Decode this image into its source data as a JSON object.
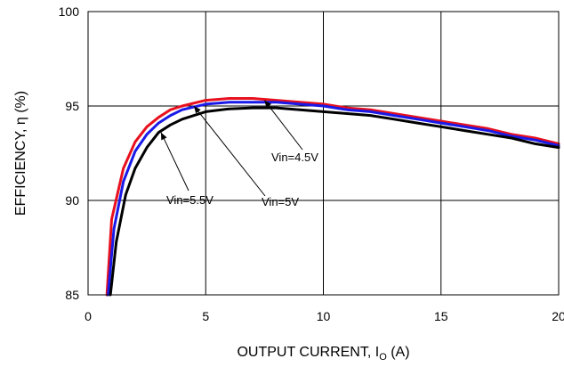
{
  "chart_data": {
    "type": "line",
    "xlabel": "OUTPUT CURRENT, I",
    "xlabel_sub": "O",
    "xlabel_unit": " (A)",
    "ylabel": "EFFICIENCY, η  (%)",
    "xlim": [
      0,
      20
    ],
    "ylim": [
      85,
      100
    ],
    "x_ticks": [
      "0",
      "5",
      "10",
      "15",
      "20"
    ],
    "y_ticks": [
      "85",
      "90",
      "95",
      "100"
    ],
    "grid": true,
    "series": [
      {
        "name": "Vin=4.5V",
        "color": "#e8101e",
        "points": [
          [
            0.8,
            85
          ],
          [
            1.0,
            89
          ],
          [
            1.5,
            91.7
          ],
          [
            2.0,
            93.1
          ],
          [
            2.5,
            93.9
          ],
          [
            3.0,
            94.4
          ],
          [
            3.5,
            94.8
          ],
          [
            4.0,
            95.0
          ],
          [
            5.0,
            95.3
          ],
          [
            6.0,
            95.4
          ],
          [
            7.0,
            95.4
          ],
          [
            8.0,
            95.3
          ],
          [
            9.0,
            95.2
          ],
          [
            10.0,
            95.1
          ],
          [
            11.0,
            94.9
          ],
          [
            12.0,
            94.8
          ],
          [
            13.0,
            94.6
          ],
          [
            14.0,
            94.4
          ],
          [
            15.0,
            94.2
          ],
          [
            16.0,
            94.0
          ],
          [
            17.0,
            93.8
          ],
          [
            18.0,
            93.5
          ],
          [
            19.0,
            93.3
          ],
          [
            20.0,
            93.0
          ]
        ]
      },
      {
        "name": "Vin=5V",
        "color": "#1a1ae8",
        "points": [
          [
            0.85,
            85
          ],
          [
            1.1,
            88.5
          ],
          [
            1.5,
            91.0
          ],
          [
            2.0,
            92.6
          ],
          [
            2.5,
            93.5
          ],
          [
            3.0,
            94.1
          ],
          [
            3.5,
            94.5
          ],
          [
            4.0,
            94.8
          ],
          [
            5.0,
            95.1
          ],
          [
            6.0,
            95.2
          ],
          [
            7.0,
            95.2
          ],
          [
            8.0,
            95.2
          ],
          [
            9.0,
            95.1
          ],
          [
            10.0,
            95.0
          ],
          [
            11.0,
            94.8
          ],
          [
            12.0,
            94.7
          ],
          [
            13.0,
            94.5
          ],
          [
            14.0,
            94.3
          ],
          [
            15.0,
            94.1
          ],
          [
            16.0,
            93.9
          ],
          [
            17.0,
            93.7
          ],
          [
            18.0,
            93.4
          ],
          [
            19.0,
            93.2
          ],
          [
            20.0,
            92.9
          ]
        ]
      },
      {
        "name": "Vin=5.5V",
        "color": "#000000",
        "points": [
          [
            0.95,
            85
          ],
          [
            1.2,
            87.8
          ],
          [
            1.6,
            90.3
          ],
          [
            2.0,
            91.7
          ],
          [
            2.5,
            92.8
          ],
          [
            3.0,
            93.6
          ],
          [
            3.5,
            94.0
          ],
          [
            4.0,
            94.3
          ],
          [
            5.0,
            94.7
          ],
          [
            6.0,
            94.85
          ],
          [
            7.0,
            94.9
          ],
          [
            8.0,
            94.9
          ],
          [
            9.0,
            94.8
          ],
          [
            10.0,
            94.7
          ],
          [
            11.0,
            94.6
          ],
          [
            12.0,
            94.5
          ],
          [
            13.0,
            94.3
          ],
          [
            14.0,
            94.1
          ],
          [
            15.0,
            93.9
          ],
          [
            16.0,
            93.7
          ],
          [
            17.0,
            93.5
          ],
          [
            18.0,
            93.3
          ],
          [
            19.0,
            93.0
          ],
          [
            20.0,
            92.8
          ]
        ]
      }
    ],
    "annotations": [
      {
        "label": "Vin=4.5V",
        "target": [
          7.5,
          95.3
        ]
      },
      {
        "label": "Vin=5V",
        "target": [
          4.5,
          95.0
        ]
      },
      {
        "label": "Vin=5.5V",
        "target": [
          3.1,
          93.6
        ]
      }
    ]
  }
}
